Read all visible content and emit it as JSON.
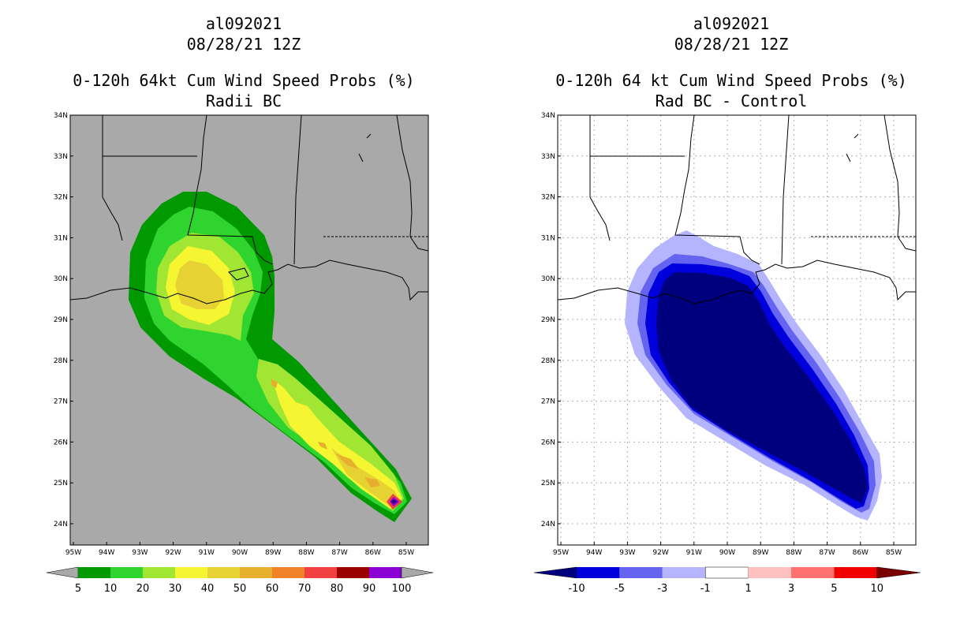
{
  "panels": {
    "left": {
      "storm": "al092021",
      "datetime": "08/28/21 12Z",
      "title": "0-120h 64kt Cum Wind Speed Probs (%)",
      "subtitle": "Radii BC",
      "colorbar": {
        "labels": [
          "5",
          "10",
          "20",
          "30",
          "40",
          "50",
          "60",
          "70",
          "80",
          "90",
          "100"
        ],
        "colors": [
          "#009a00",
          "#2fd42f",
          "#a0e632",
          "#f5f532",
          "#e6d232",
          "#e6af2d",
          "#f08228",
          "#f04040",
          "#9a0000",
          "#8b00d2"
        ]
      }
    },
    "right": {
      "storm": "al092021",
      "datetime": "08/28/21 12Z",
      "title": "0-120h 64 kt Cum Wind Speed Probs (%)",
      "subtitle": "Rad BC - Control",
      "colorbar": {
        "labels": [
          "-10",
          "-5",
          "-3",
          "-1",
          "1",
          "3",
          "5",
          "10"
        ],
        "colors": [
          "#0000dc",
          "#6464f0",
          "#b4b4ff",
          "#ffffff",
          "#ffc0c0",
          "#ff7070",
          "#f00000"
        ]
      }
    }
  },
  "axes": {
    "lat_labels": [
      "34N",
      "33N",
      "32N",
      "31N",
      "30N",
      "29N",
      "28N",
      "27N",
      "26N",
      "25N",
      "24N"
    ],
    "lon_labels": [
      "95W",
      "94W",
      "93W",
      "92W",
      "91W",
      "90W",
      "89W",
      "88W",
      "87W",
      "86W",
      "85W"
    ]
  },
  "colors": {
    "land": "#a9a9a9",
    "left_max_marker": "#1f0080",
    "right_min_fill": "#00007f",
    "right_max_arrow": "#7a0000"
  }
}
